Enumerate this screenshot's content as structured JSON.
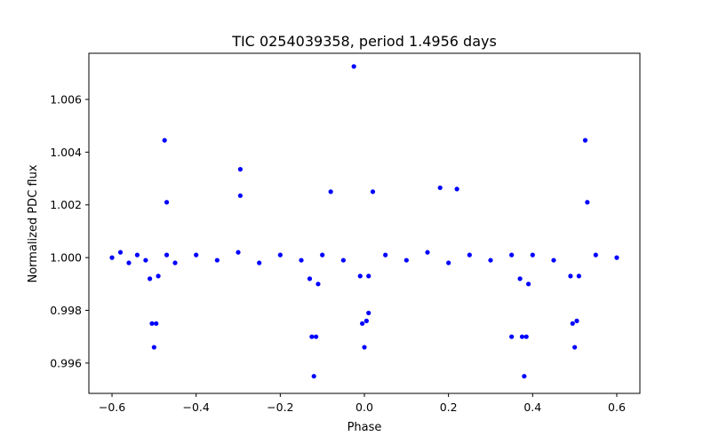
{
  "chart_data": {
    "type": "scatter",
    "title": "TIC 0254039358, period 1.4956 days",
    "xlabel": "Phase",
    "ylabel": "Normalized PDC flux",
    "xlim": [
      -0.655,
      0.655
    ],
    "ylim": [
      0.99485,
      1.00775
    ],
    "xticks": [
      -0.6,
      -0.4,
      -0.2,
      0.0,
      0.2,
      0.4,
      0.6
    ],
    "xtick_labels": [
      "−0.6",
      "−0.4",
      "−0.2",
      "0.0",
      "0.2",
      "0.4",
      "0.6"
    ],
    "yticks": [
      0.996,
      0.998,
      1.0,
      1.002,
      1.004,
      1.006
    ],
    "ytick_labels": [
      "0.996",
      "0.998",
      "1.000",
      "1.002",
      "1.004",
      "1.006"
    ],
    "grid": false,
    "marker_color": "#0000ff",
    "series": [
      {
        "points": [
          [
            -0.6,
            1.0
          ],
          [
            -0.58,
            1.0002
          ],
          [
            -0.56,
            0.9998
          ],
          [
            -0.54,
            1.0001
          ],
          [
            -0.52,
            0.9999
          ],
          [
            -0.51,
            0.9992
          ],
          [
            -0.505,
            0.9975
          ],
          [
            -0.5,
            0.9966
          ],
          [
            -0.495,
            0.9975
          ],
          [
            -0.49,
            0.9993
          ],
          [
            -0.47,
            1.0001
          ],
          [
            -0.45,
            0.9998
          ],
          [
            -0.4,
            1.0001
          ],
          [
            -0.35,
            0.9999
          ],
          [
            -0.3,
            1.0002
          ],
          [
            -0.25,
            0.9998
          ],
          [
            -0.2,
            1.0001
          ],
          [
            -0.15,
            0.9999
          ],
          [
            -0.13,
            0.9992
          ],
          [
            -0.125,
            0.997
          ],
          [
            -0.12,
            0.9955
          ],
          [
            -0.115,
            0.997
          ],
          [
            -0.11,
            0.999
          ],
          [
            -0.1,
            1.0001
          ],
          [
            -0.05,
            0.9999
          ],
          [
            -0.01,
            0.9993
          ],
          [
            -0.005,
            0.9975
          ],
          [
            0.0,
            0.9966
          ],
          [
            0.005,
            0.9976
          ],
          [
            0.01,
            0.9993
          ],
          [
            0.05,
            1.0001
          ],
          [
            0.1,
            0.9999
          ],
          [
            0.15,
            1.0002
          ],
          [
            0.2,
            0.9998
          ],
          [
            0.25,
            1.0001
          ],
          [
            0.3,
            0.9999
          ],
          [
            0.35,
            1.0001
          ],
          [
            0.37,
            0.9992
          ],
          [
            0.375,
            0.997
          ],
          [
            0.38,
            0.9955
          ],
          [
            0.385,
            0.997
          ],
          [
            0.39,
            0.999
          ],
          [
            0.4,
            1.0001
          ],
          [
            0.45,
            0.9999
          ],
          [
            0.49,
            0.9993
          ],
          [
            0.495,
            0.9975
          ],
          [
            0.5,
            0.9966
          ],
          [
            0.505,
            0.9976
          ],
          [
            0.51,
            0.9993
          ],
          [
            0.55,
            1.0001
          ],
          [
            0.6,
            1.0
          ],
          [
            -0.475,
            1.00445
          ],
          [
            0.525,
            1.00445
          ],
          [
            -0.025,
            1.00725
          ],
          [
            -0.295,
            1.00335
          ],
          [
            -0.295,
            1.00235
          ],
          [
            0.18,
            1.00265
          ],
          [
            0.22,
            1.0026
          ],
          [
            -0.08,
            1.0025
          ],
          [
            0.02,
            1.0025
          ],
          [
            -0.47,
            1.0021
          ],
          [
            0.53,
            1.0021
          ],
          [
            0.35,
            0.997
          ],
          [
            0.01,
            0.9979
          ]
        ]
      }
    ]
  }
}
